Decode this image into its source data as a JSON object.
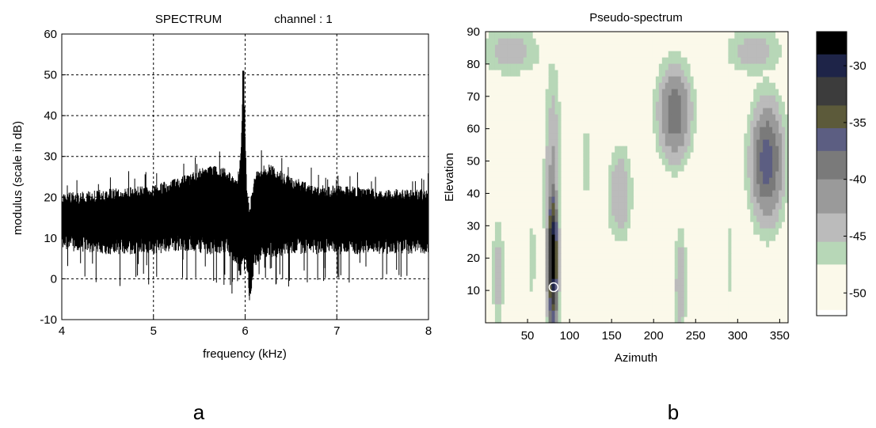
{
  "captions": {
    "left": "a",
    "right": "b"
  },
  "chart_data": [
    {
      "type": "line",
      "title": "SPECTRUM",
      "subtitle": "channel : 1",
      "xlabel": "frequency (kHz)",
      "ylabel": "modulus (scale in dB)",
      "xlim": [
        4,
        8
      ],
      "ylim": [
        -10,
        60
      ],
      "x_ticks": [
        4,
        5,
        6,
        7,
        8
      ],
      "y_ticks": [
        -10,
        0,
        10,
        20,
        30,
        40,
        50,
        60
      ],
      "grid": true,
      "grid_style": "dotted",
      "line_color": "#000000",
      "envelope": {
        "x": [
          4.0,
          4.5,
          5.0,
          5.3,
          5.6,
          5.8,
          5.9,
          5.95,
          5.98,
          6.02,
          6.05,
          6.1,
          6.2,
          6.3,
          6.5,
          6.8,
          7.0,
          7.5,
          8.0
        ],
        "upper": [
          21,
          22,
          23,
          25,
          28,
          27,
          24,
          30,
          50,
          22,
          18,
          26,
          28,
          28,
          25,
          23,
          23,
          22,
          22
        ],
        "lower": [
          7,
          6,
          6,
          7,
          6,
          6,
          3,
          0,
          5,
          2,
          -6,
          3,
          5,
          5,
          6,
          6,
          6,
          6,
          6
        ]
      },
      "peak": {
        "x": 5.98,
        "y": 51
      }
    },
    {
      "type": "heatmap",
      "title": "Pseudo-spectrum",
      "xlabel": "Azimuth",
      "ylabel": "Elevation",
      "xlim": [
        0,
        360
      ],
      "ylim": [
        0,
        90
      ],
      "x_ticks": [
        50,
        100,
        150,
        200,
        250,
        300,
        350
      ],
      "y_ticks": [
        10,
        20,
        30,
        40,
        50,
        60,
        70,
        80,
        90
      ],
      "colorbar": {
        "ticks": [
          -30,
          -35,
          -40,
          -45,
          -50
        ],
        "range": [
          -52,
          -27
        ],
        "levels": [
          {
            "from": -27,
            "to": -29,
            "color": "#000000"
          },
          {
            "from": -29,
            "to": -31,
            "color": "#1e2448"
          },
          {
            "from": -31,
            "to": -33.5,
            "color": "#3c3c3c"
          },
          {
            "from": -33.5,
            "to": -35.5,
            "color": "#5c5a3a"
          },
          {
            "from": -35.5,
            "to": -37.5,
            "color": "#5c5e82"
          },
          {
            "from": -37.5,
            "to": -40,
            "color": "#7a7a7a"
          },
          {
            "from": -40,
            "to": -43,
            "color": "#9a9a9a"
          },
          {
            "from": -43,
            "to": -45.5,
            "color": "#bbbbbb"
          },
          {
            "from": -45.5,
            "to": -47.5,
            "color": "#b7d7b7"
          },
          {
            "from": -47.5,
            "to": -51.5,
            "color": "#fbf9ea"
          },
          {
            "from": -51.5,
            "to": -52,
            "color": "#ffffff"
          }
        ]
      },
      "marker": {
        "azimuth": 81,
        "elevation": 11,
        "shape": "circle"
      },
      "blobs": [
        {
          "az": 80,
          "el": 20,
          "peak_db": -27,
          "az_sd": 5,
          "el_sd": 18
        },
        {
          "az": 80,
          "el": 40,
          "peak_db": -42,
          "az_sd": 8,
          "el_sd": 30
        },
        {
          "az": 15,
          "el": 15,
          "peak_db": -44,
          "az_sd": 6,
          "el_sd": 14
        },
        {
          "az": 55,
          "el": 20,
          "peak_db": -46,
          "az_sd": 5,
          "el_sd": 12
        },
        {
          "az": 160,
          "el": 40,
          "peak_db": -43,
          "az_sd": 12,
          "el_sd": 12
        },
        {
          "az": 225,
          "el": 65,
          "peak_db": -38,
          "az_sd": 16,
          "el_sd": 12
        },
        {
          "az": 232,
          "el": 12,
          "peak_db": -43,
          "az_sd": 6,
          "el_sd": 14
        },
        {
          "az": 335,
          "el": 50,
          "peak_db": -36,
          "az_sd": 16,
          "el_sd": 15
        },
        {
          "az": 30,
          "el": 84,
          "peak_db": -44,
          "az_sd": 30,
          "el_sd": 6
        },
        {
          "az": 320,
          "el": 84,
          "peak_db": -44,
          "az_sd": 28,
          "el_sd": 6
        },
        {
          "az": 120,
          "el": 50,
          "peak_db": -47,
          "az_sd": 6,
          "el_sd": 22
        },
        {
          "az": 290,
          "el": 20,
          "peak_db": -47,
          "az_sd": 6,
          "el_sd": 20
        }
      ]
    }
  ]
}
